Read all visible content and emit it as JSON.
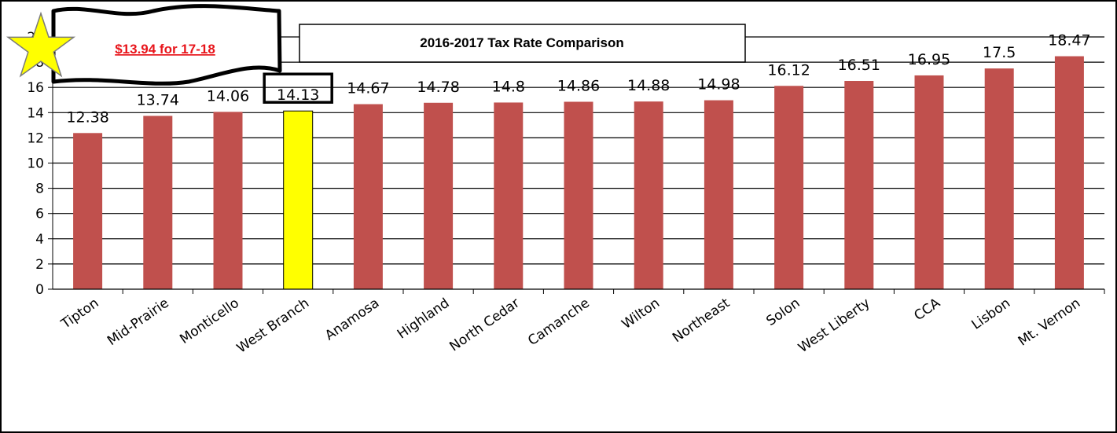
{
  "chart_data": {
    "type": "bar",
    "title": "2016-2017 Tax Rate Comparison",
    "categories": [
      "Tipton",
      "Mid-Prairie",
      "Monticello",
      "West Branch",
      "Anamosa",
      "Highland",
      "North Cedar",
      "Camanche",
      "Wilton",
      "Northeast",
      "Solon",
      "West Liberty",
      "CCA",
      "Lisbon",
      "Mt. Vernon"
    ],
    "values": [
      12.38,
      13.74,
      14.06,
      14.13,
      14.67,
      14.78,
      14.8,
      14.86,
      14.88,
      14.98,
      16.12,
      16.51,
      16.95,
      17.5,
      18.47
    ],
    "value_labels": [
      "12.38",
      "13.74",
      "14.06",
      "14.13",
      "14.67",
      "14.78",
      "14.8",
      "14.86",
      "14.88",
      "14.98",
      "16.12",
      "16.51",
      "16.95",
      "17.5",
      "18.47"
    ],
    "y_ticks": [
      0,
      2,
      4,
      6,
      8,
      10,
      12,
      14,
      16,
      18,
      20
    ],
    "ylim": [
      0,
      20
    ],
    "xlabel": "",
    "ylabel": "",
    "grid": true,
    "legend": false,
    "highlight_category": "West Branch",
    "colors": {
      "bar": "#c0504d",
      "highlight_bar": "#ffff00",
      "grid": "#000000",
      "star": "#ffff00",
      "callout_text": "#e8151b"
    },
    "annotation": {
      "callout": "$13.94 for 17-18",
      "icon": "star-icon"
    }
  }
}
